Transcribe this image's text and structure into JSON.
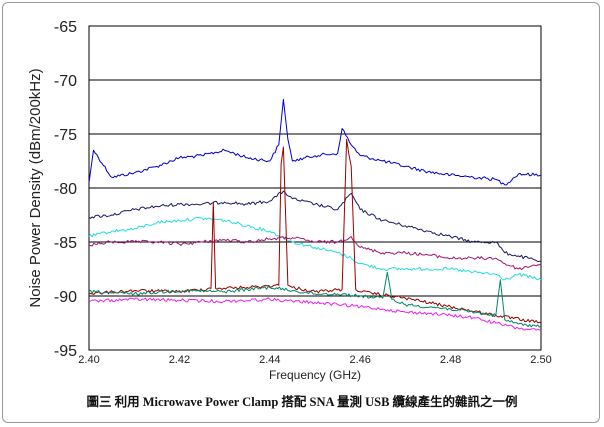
{
  "caption": "圖三 利用 Microwave Power Clamp 搭配 SNA 量測 USB 纜線產生的雜訊之一例",
  "chart_data": {
    "type": "line",
    "title": "",
    "xlabel": "Frequency (GHz)",
    "ylabel": "Noise Power Density (dBm/200kHz)",
    "xlim": [
      2.4,
      2.5
    ],
    "ylim": [
      -95,
      -65
    ],
    "xticks": [
      "2.40",
      "2.42",
      "2.44",
      "2.46",
      "2.48",
      "2.50"
    ],
    "yticks": [
      "-65",
      "-70",
      "-75",
      "-80",
      "-85",
      "-90",
      "-95"
    ],
    "grid": "horizontal",
    "legend": "none",
    "series": [
      {
        "color": "#0000cc",
        "x": [
          2.4,
          2.401,
          2.405,
          2.41,
          2.415,
          2.42,
          2.425,
          2.43,
          2.435,
          2.44,
          2.442,
          2.443,
          2.444,
          2.445,
          2.45,
          2.455,
          2.456,
          2.458,
          2.46,
          2.465,
          2.47,
          2.475,
          2.48,
          2.485,
          2.49,
          2.492,
          2.495,
          2.5
        ],
        "y": [
          -79.5,
          -76.5,
          -79.0,
          -78.6,
          -78.0,
          -77.2,
          -77.0,
          -76.5,
          -77.2,
          -77.5,
          -76.0,
          -71.8,
          -75.5,
          -77.5,
          -77.0,
          -76.8,
          -74.5,
          -76.0,
          -77.0,
          -77.5,
          -78.0,
          -78.5,
          -78.8,
          -79.0,
          -79.2,
          -79.7,
          -78.7,
          -78.8
        ]
      },
      {
        "color": "#1a1a66",
        "x": [
          2.4,
          2.405,
          2.41,
          2.415,
          2.42,
          2.425,
          2.43,
          2.435,
          2.44,
          2.443,
          2.445,
          2.45,
          2.455,
          2.458,
          2.46,
          2.465,
          2.47,
          2.475,
          2.48,
          2.485,
          2.49,
          2.492,
          2.495,
          2.5
        ],
        "y": [
          -82.7,
          -82.5,
          -82.0,
          -81.7,
          -81.5,
          -81.5,
          -81.3,
          -81.5,
          -81.2,
          -80.3,
          -81.0,
          -81.5,
          -82.0,
          -80.5,
          -82.0,
          -83.0,
          -83.5,
          -84.0,
          -84.5,
          -85.0,
          -85.0,
          -86.0,
          -86.3,
          -86.8
        ]
      },
      {
        "color": "#22dddd",
        "x": [
          2.4,
          2.405,
          2.41,
          2.415,
          2.42,
          2.425,
          2.43,
          2.435,
          2.44,
          2.445,
          2.45,
          2.455,
          2.458,
          2.46,
          2.465,
          2.47,
          2.475,
          2.48,
          2.485,
          2.49,
          2.492,
          2.495,
          2.5
        ],
        "y": [
          -84.5,
          -84.0,
          -83.8,
          -83.2,
          -83.0,
          -82.8,
          -83.0,
          -83.5,
          -84.0,
          -85.0,
          -85.5,
          -86.0,
          -86.5,
          -87.0,
          -87.5,
          -87.5,
          -87.5,
          -87.5,
          -87.8,
          -88.0,
          -88.5,
          -88.0,
          -88.5
        ]
      },
      {
        "color": "#a01870",
        "x": [
          2.4,
          2.405,
          2.41,
          2.415,
          2.42,
          2.425,
          2.43,
          2.435,
          2.44,
          2.445,
          2.45,
          2.455,
          2.458,
          2.46,
          2.465,
          2.47,
          2.475,
          2.48,
          2.485,
          2.49,
          2.492,
          2.495,
          2.5
        ],
        "y": [
          -85.3,
          -85.0,
          -85.0,
          -85.0,
          -85.2,
          -85.0,
          -84.8,
          -85.0,
          -84.7,
          -84.6,
          -85.0,
          -85.0,
          -84.5,
          -85.5,
          -86.0,
          -86.0,
          -86.2,
          -86.5,
          -86.5,
          -86.5,
          -87.0,
          -87.5,
          -87.0
        ]
      },
      {
        "color": "#990000",
        "x": [
          2.4,
          2.41,
          2.42,
          2.427,
          2.4275,
          2.428,
          2.435,
          2.442,
          2.4425,
          2.443,
          2.444,
          2.445,
          2.45,
          2.456,
          2.457,
          2.458,
          2.459,
          2.46,
          2.47,
          2.48,
          2.49,
          2.5
        ],
        "y": [
          -89.8,
          -89.5,
          -89.6,
          -89.3,
          -81.3,
          -89.3,
          -89.2,
          -89.0,
          -77.8,
          -76.2,
          -89.0,
          -89.2,
          -89.6,
          -89.4,
          -75.5,
          -78.0,
          -89.4,
          -89.6,
          -90.2,
          -91.0,
          -91.8,
          -92.5
        ]
      },
      {
        "color": "#008866",
        "x": [
          2.4,
          2.41,
          2.42,
          2.43,
          2.44,
          2.445,
          2.45,
          2.455,
          2.46,
          2.465,
          2.466,
          2.467,
          2.47,
          2.48,
          2.49,
          2.491,
          2.492,
          2.495,
          2.5
        ],
        "y": [
          -89.6,
          -89.8,
          -89.5,
          -89.6,
          -89.2,
          -89.5,
          -89.8,
          -89.8,
          -90.0,
          -90.2,
          -87.8,
          -90.3,
          -90.8,
          -91.2,
          -91.8,
          -88.5,
          -92.2,
          -92.6,
          -92.8
        ]
      },
      {
        "color": "#ee22ee",
        "x": [
          2.4,
          2.41,
          2.42,
          2.43,
          2.44,
          2.445,
          2.45,
          2.455,
          2.46,
          2.465,
          2.47,
          2.475,
          2.48,
          2.485,
          2.49,
          2.495,
          2.5
        ],
        "y": [
          -90.5,
          -90.3,
          -90.4,
          -90.5,
          -90.3,
          -90.5,
          -90.6,
          -90.8,
          -91.0,
          -91.2,
          -91.5,
          -91.6,
          -91.8,
          -92.0,
          -92.5,
          -93.0,
          -93.2
        ]
      }
    ]
  }
}
